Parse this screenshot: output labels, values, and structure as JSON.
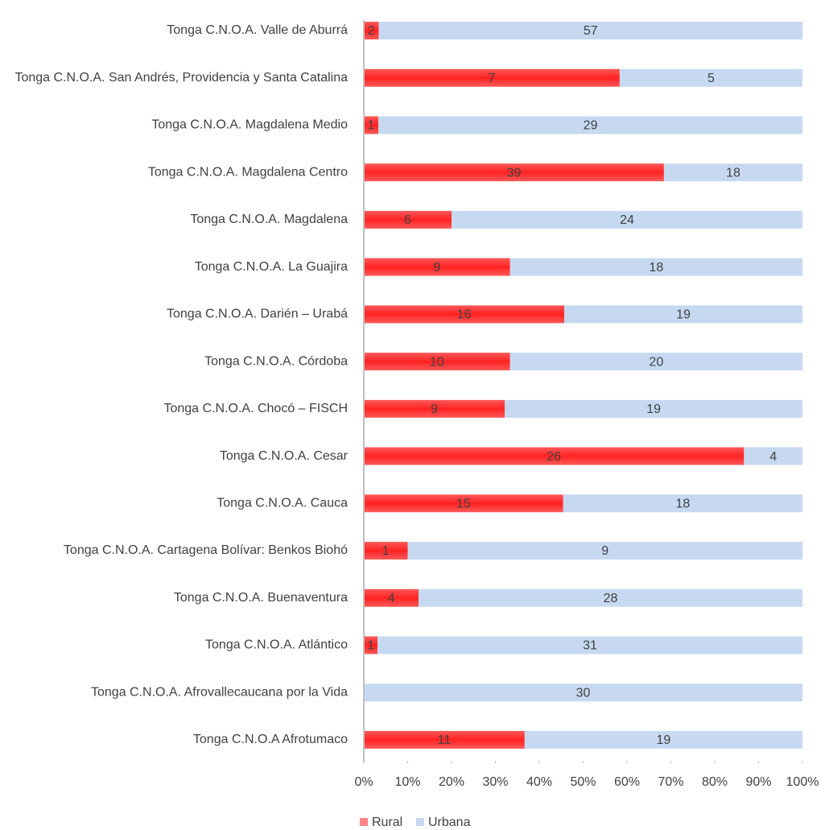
{
  "chart_data": {
    "type": "bar",
    "orientation": "horizontal",
    "stacking": "percent",
    "categories": [
      "Tonga C.N.O.A. Valle de Aburrá",
      "Tonga C.N.O.A. San Andrés, Providencia y Santa Catalina",
      "Tonga C.N.O.A. Magdalena Medio",
      "Tonga C.N.O.A. Magdalena Centro",
      "Tonga C.N.O.A. Magdalena",
      "Tonga C.N.O.A. La Guajira",
      "Tonga C.N.O.A. Darién – Urabá",
      "Tonga C.N.O.A. Córdoba",
      "Tonga C.N.O.A. Chocó – FISCH",
      "Tonga C.N.O.A. Cesar",
      "Tonga C.N.O.A. Cauca",
      "Tonga C.N.O.A. Cartagena Bolívar: Benkos Biohó",
      "Tonga C.N.O.A. Buenaventura",
      "Tonga C.N.O.A. Atlántico",
      "Tonga C.N.O.A. Afrovallecaucana por la Vida",
      "Tonga C.N.O.A Afrotumaco"
    ],
    "series": [
      {
        "name": "Rural",
        "color": "#ff2222",
        "values": [
          2,
          7,
          1,
          39,
          6,
          9,
          16,
          10,
          9,
          26,
          15,
          1,
          4,
          1,
          null,
          11
        ]
      },
      {
        "name": "Urbana",
        "color": "#c6d9f1",
        "values": [
          57,
          5,
          29,
          18,
          24,
          18,
          19,
          20,
          19,
          4,
          18,
          9,
          28,
          31,
          30,
          19
        ]
      }
    ],
    "xlim": [
      0,
      100
    ],
    "xticks": [
      {
        "value": 0,
        "label": "0%"
      },
      {
        "value": 10,
        "label": "10%"
      },
      {
        "value": 20,
        "label": "20%"
      },
      {
        "value": 30,
        "label": "30%"
      },
      {
        "value": 40,
        "label": "40%"
      },
      {
        "value": 50,
        "label": "50%"
      },
      {
        "value": 60,
        "label": "60%"
      },
      {
        "value": 70,
        "label": "70%"
      },
      {
        "value": 80,
        "label": "80%"
      },
      {
        "value": 90,
        "label": "90%"
      },
      {
        "value": 100,
        "label": "100%"
      }
    ],
    "legend": "bottom"
  }
}
